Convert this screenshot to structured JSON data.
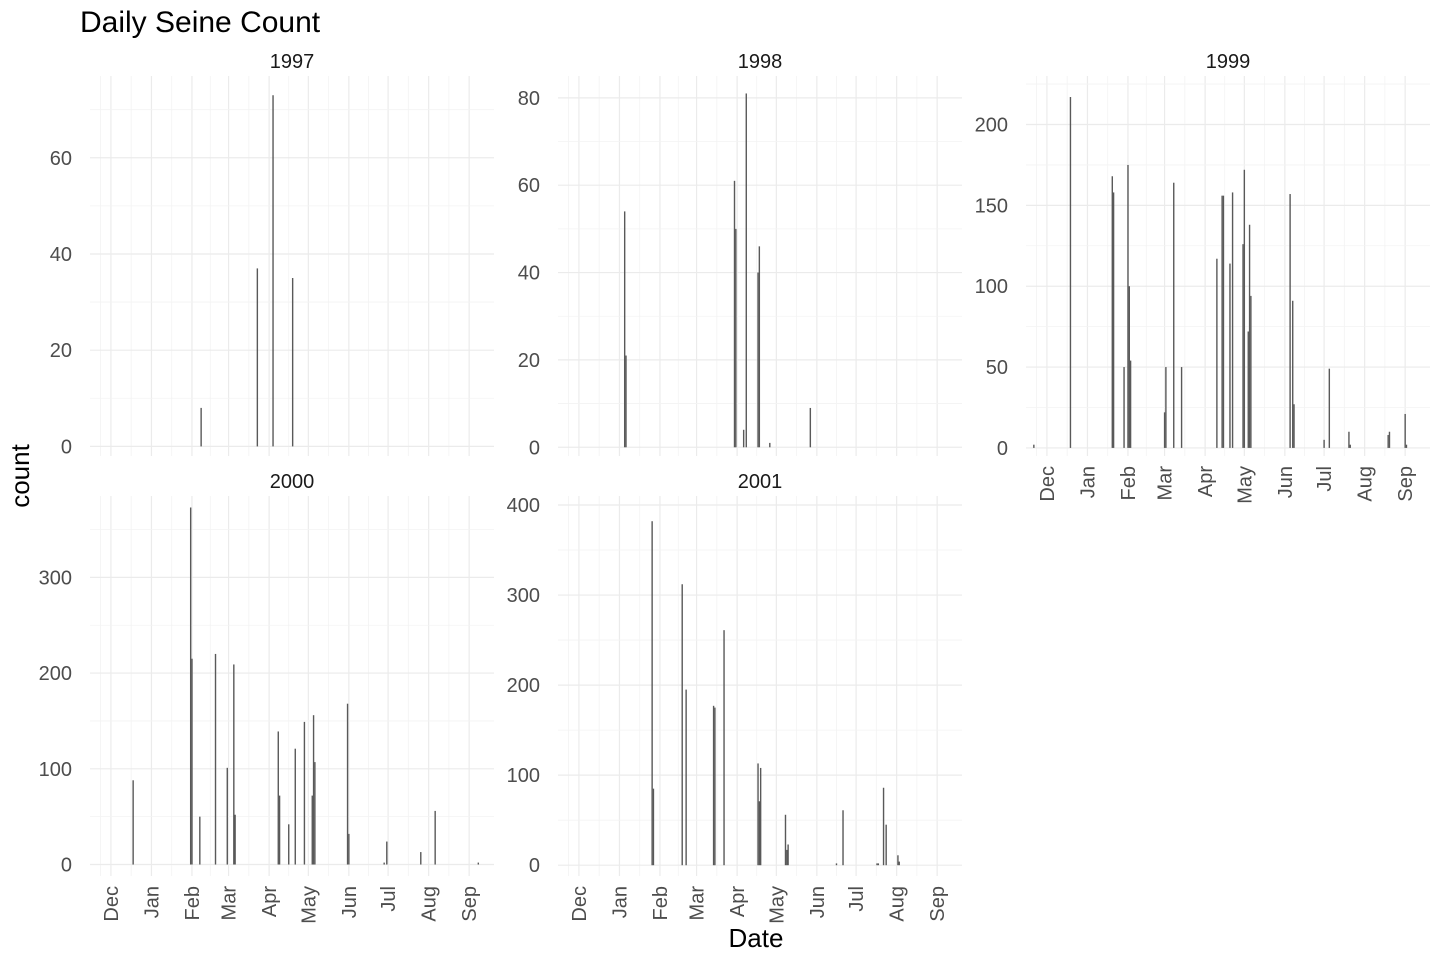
{
  "chart_data": {
    "type": "bar",
    "title": "Daily Seine Count",
    "xlabel": "Date",
    "ylabel": "count",
    "grid": true,
    "layout": "facet-wrap-3-columns",
    "x_axis": {
      "type": "date",
      "range": [
        "11-15",
        "09-20"
      ],
      "month_ticks": [
        {
          "label": "Dec",
          "date": "12-01"
        },
        {
          "label": "Jan",
          "date": "01-01"
        },
        {
          "label": "Feb",
          "date": "02-01"
        },
        {
          "label": "Mar",
          "date": "03-01"
        },
        {
          "label": "Apr",
          "date": "04-01"
        },
        {
          "label": "May",
          "date": "05-01"
        },
        {
          "label": "Jun",
          "date": "06-01"
        },
        {
          "label": "Jul",
          "date": "07-01"
        },
        {
          "label": "Aug",
          "date": "08-01"
        },
        {
          "label": "Sep",
          "date": "09-01"
        }
      ]
    },
    "panels": [
      {
        "facet": "1997",
        "ylim": [
          -2,
          77
        ],
        "yticks": [
          0,
          20,
          40,
          60
        ],
        "show_x_labels": false,
        "bars": [
          {
            "date": "02-08",
            "value": 8
          },
          {
            "date": "03-23",
            "value": 37
          },
          {
            "date": "04-04",
            "value": 73
          },
          {
            "date": "04-19",
            "value": 35
          }
        ]
      },
      {
        "facet": "1998",
        "ylim": [
          -2,
          85
        ],
        "yticks": [
          0,
          20,
          40,
          60,
          80
        ],
        "show_x_labels": false,
        "bars": [
          {
            "date": "01-05",
            "value": 54
          },
          {
            "date": "01-06",
            "value": 21
          },
          {
            "date": "03-30",
            "value": 61
          },
          {
            "date": "03-31",
            "value": 50
          },
          {
            "date": "04-06",
            "value": 4
          },
          {
            "date": "04-08",
            "value": 81
          },
          {
            "date": "04-17",
            "value": 40
          },
          {
            "date": "04-18",
            "value": 46
          },
          {
            "date": "04-26",
            "value": 1
          },
          {
            "date": "05-27",
            "value": 9
          }
        ]
      },
      {
        "facet": "1999",
        "ylim": [
          -5,
          230
        ],
        "yticks": [
          0,
          50,
          100,
          150,
          200
        ],
        "show_x_labels": true,
        "bars": [
          {
            "date": "11-21",
            "value": 2
          },
          {
            "date": "12-19",
            "value": 217
          },
          {
            "date": "01-20",
            "value": 168
          },
          {
            "date": "01-21",
            "value": 158
          },
          {
            "date": "01-29",
            "value": 50
          },
          {
            "date": "02-01",
            "value": 175
          },
          {
            "date": "02-02",
            "value": 100
          },
          {
            "date": "02-03",
            "value": 54
          },
          {
            "date": "03-01",
            "value": 22
          },
          {
            "date": "03-02",
            "value": 50
          },
          {
            "date": "03-08",
            "value": 164
          },
          {
            "date": "03-14",
            "value": 50
          },
          {
            "date": "04-10",
            "value": 117
          },
          {
            "date": "04-14",
            "value": 156
          },
          {
            "date": "04-15",
            "value": 156
          },
          {
            "date": "04-20",
            "value": 114
          },
          {
            "date": "04-22",
            "value": 158
          },
          {
            "date": "04-30",
            "value": 126
          },
          {
            "date": "05-01",
            "value": 172
          },
          {
            "date": "05-04",
            "value": 72
          },
          {
            "date": "05-05",
            "value": 138
          },
          {
            "date": "05-06",
            "value": 94
          },
          {
            "date": "06-05",
            "value": 157
          },
          {
            "date": "06-07",
            "value": 91
          },
          {
            "date": "06-08",
            "value": 27
          },
          {
            "date": "07-01",
            "value": 5
          },
          {
            "date": "07-05",
            "value": 49
          },
          {
            "date": "07-20",
            "value": 10
          },
          {
            "date": "07-21",
            "value": 2
          },
          {
            "date": "08-19",
            "value": 8
          },
          {
            "date": "08-20",
            "value": 10
          },
          {
            "date": "09-01",
            "value": 21
          },
          {
            "date": "09-02",
            "value": 2
          }
        ]
      },
      {
        "facet": "2000",
        "ylim": [
          -12,
          385
        ],
        "yticks": [
          0,
          100,
          200,
          300
        ],
        "show_x_labels": true,
        "bars": [
          {
            "date": "12-18",
            "value": 88
          },
          {
            "date": "01-31",
            "value": 373
          },
          {
            "date": "02-01",
            "value": 215
          },
          {
            "date": "02-07",
            "value": 50
          },
          {
            "date": "02-19",
            "value": 220
          },
          {
            "date": "02-28",
            "value": 101
          },
          {
            "date": "03-05",
            "value": 209
          },
          {
            "date": "03-06",
            "value": 52
          },
          {
            "date": "04-08",
            "value": 139
          },
          {
            "date": "04-09",
            "value": 72
          },
          {
            "date": "04-16",
            "value": 42
          },
          {
            "date": "04-21",
            "value": 121
          },
          {
            "date": "04-28",
            "value": 149
          },
          {
            "date": "05-04",
            "value": 72
          },
          {
            "date": "05-05",
            "value": 156
          },
          {
            "date": "05-06",
            "value": 107
          },
          {
            "date": "05-31",
            "value": 168
          },
          {
            "date": "06-01",
            "value": 32
          },
          {
            "date": "06-28",
            "value": 2
          },
          {
            "date": "06-30",
            "value": 24
          },
          {
            "date": "07-26",
            "value": 13
          },
          {
            "date": "08-06",
            "value": 56
          },
          {
            "date": "09-08",
            "value": 2
          }
        ]
      },
      {
        "facet": "2001",
        "ylim": [
          -12,
          410
        ],
        "yticks": [
          0,
          100,
          200,
          300,
          400
        ],
        "show_x_labels": true,
        "bars": [
          {
            "date": "01-26",
            "value": 382
          },
          {
            "date": "01-27",
            "value": 85
          },
          {
            "date": "02-18",
            "value": 312
          },
          {
            "date": "02-21",
            "value": 195
          },
          {
            "date": "03-14",
            "value": 177
          },
          {
            "date": "03-15",
            "value": 175
          },
          {
            "date": "03-22",
            "value": 261
          },
          {
            "date": "04-17",
            "value": 113
          },
          {
            "date": "04-18",
            "value": 71
          },
          {
            "date": "04-19",
            "value": 108
          },
          {
            "date": "05-08",
            "value": 56
          },
          {
            "date": "05-09",
            "value": 17
          },
          {
            "date": "05-10",
            "value": 23
          },
          {
            "date": "06-16",
            "value": 2
          },
          {
            "date": "06-21",
            "value": 61
          },
          {
            "date": "07-17",
            "value": 2
          },
          {
            "date": "07-18",
            "value": 2
          },
          {
            "date": "07-22",
            "value": 86
          },
          {
            "date": "07-24",
            "value": 45
          },
          {
            "date": "08-02",
            "value": 11
          },
          {
            "date": "08-03",
            "value": 4
          }
        ]
      }
    ]
  }
}
